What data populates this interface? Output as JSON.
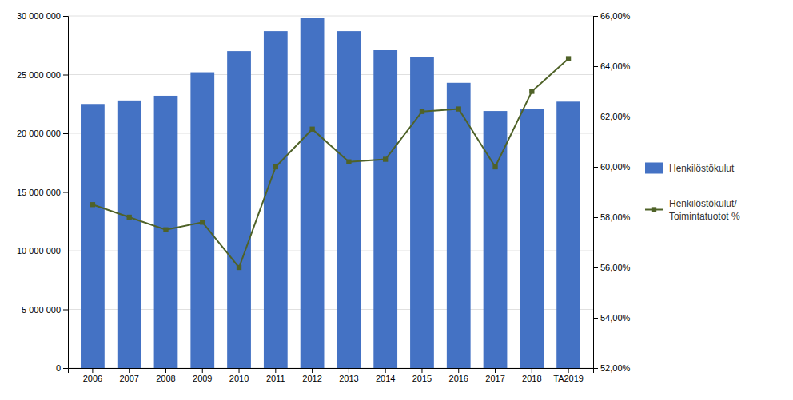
{
  "chart_data": {
    "type": "bar",
    "categories": [
      "2006",
      "2007",
      "2008",
      "2009",
      "2010",
      "2011",
      "2012",
      "2013",
      "2014",
      "2015",
      "2016",
      "2017",
      "2018",
      "TA2019"
    ],
    "series": [
      {
        "name": "Henkilöstökulut",
        "type": "bar",
        "color": "#4472C4",
        "values": [
          22500000,
          22800000,
          23200000,
          25200000,
          27000000,
          28700000,
          29800000,
          28700000,
          27100000,
          26500000,
          24300000,
          21900000,
          22100000,
          22700000
        ]
      },
      {
        "name": "Henkilöstökulut/\nToimintatuotot %",
        "type": "line",
        "color": "#4F6228",
        "marker": "square",
        "axis": "y2",
        "values": [
          0.585,
          0.58,
          0.575,
          0.578,
          0.56,
          0.6,
          0.615,
          0.602,
          0.603,
          0.622,
          0.623,
          0.6,
          0.63,
          0.643
        ]
      }
    ],
    "ylim": [
      0,
      30000000
    ],
    "yticks": [
      0,
      {
        "value": 5000000,
        "label": "5 000 000"
      },
      {
        "value": 10000000,
        "label": "10 000 000"
      },
      {
        "value": 15000000,
        "label": "15 000 000"
      },
      {
        "value": 20000000,
        "label": "20 000 000"
      },
      {
        "value": 25000000,
        "label": "25 000 000"
      },
      {
        "value": 30000000,
        "label": "30 000 000"
      }
    ],
    "y2lim": [
      0.52,
      0.66
    ],
    "y2ticks": [
      {
        "value": 0.52,
        "label": "52,00%"
      },
      {
        "value": 0.54,
        "label": "54,00%"
      },
      {
        "value": 0.56,
        "label": "56,00%"
      },
      {
        "value": 0.58,
        "label": "58,00%"
      },
      {
        "value": 0.6,
        "label": "60,00%"
      },
      {
        "value": 0.62,
        "label": "62,00%"
      },
      {
        "value": 0.64,
        "label": "64,00%"
      },
      {
        "value": 0.66,
        "label": "66,00%"
      }
    ],
    "grid": true,
    "legend": "right"
  }
}
